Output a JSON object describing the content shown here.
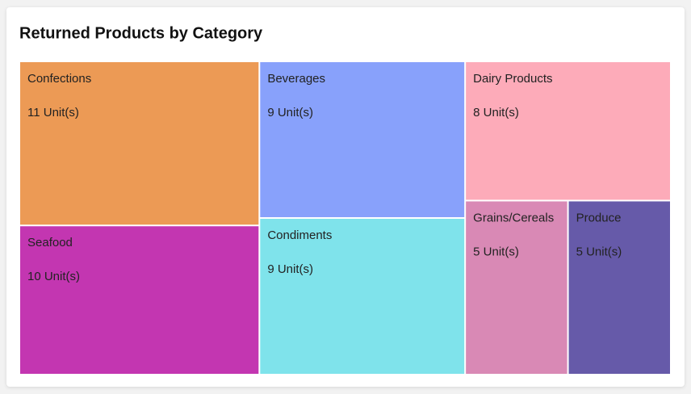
{
  "chart_data": {
    "type": "treemap",
    "title": "Returned Products by Category",
    "categories": [
      "Confections",
      "Seafood",
      "Beverages",
      "Condiments",
      "Dairy Products",
      "Grains/Cereals",
      "Produce"
    ],
    "values": [
      11,
      10,
      9,
      9,
      8,
      5,
      5
    ],
    "value_labels": [
      "11 Unit(s)",
      "10 Unit(s)",
      "9 Unit(s)",
      "9 Unit(s)",
      "8 Unit(s)",
      "5 Unit(s)",
      "5 Unit(s)"
    ],
    "colors": [
      "#ec9a55",
      "#c336b1",
      "#88a1fb",
      "#7fe3eb",
      "#fdabb9",
      "#d989b5",
      "#665aa9"
    ]
  }
}
